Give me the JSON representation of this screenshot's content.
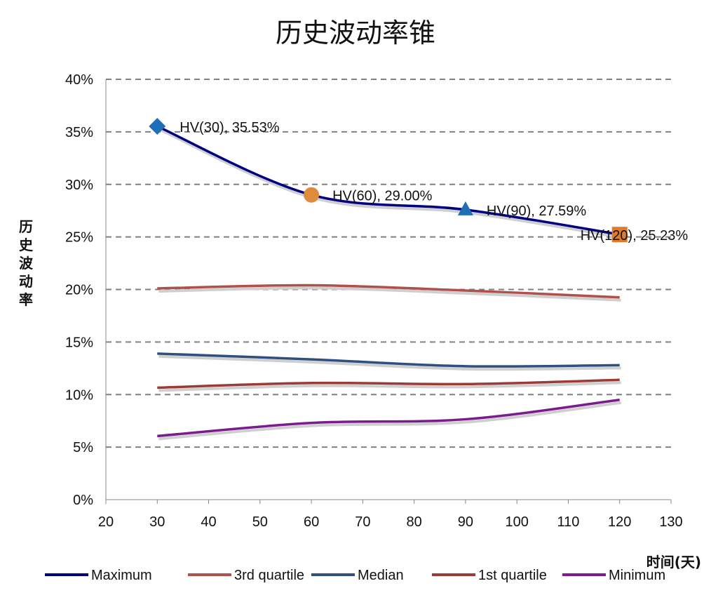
{
  "chart_data": {
    "type": "line",
    "title": "历史波动率锥",
    "ylabel": "历史波动率",
    "xlabel": "时间(天)",
    "xlim": [
      20,
      130
    ],
    "xticks": [
      20,
      30,
      40,
      50,
      60,
      70,
      80,
      90,
      100,
      110,
      120,
      130
    ],
    "ylim": [
      0,
      0.4
    ],
    "yticks": [
      0,
      0.05,
      0.1,
      0.15,
      0.2,
      0.25,
      0.3,
      0.35,
      0.4
    ],
    "ytick_labels": [
      "0%",
      "5%",
      "10%",
      "15%",
      "20%",
      "25%",
      "30%",
      "35%",
      "40%"
    ],
    "grid": "horizontal dashed",
    "legend_position": "bottom",
    "x": [
      30,
      60,
      90,
      120
    ],
    "series": [
      {
        "name": "Maximum",
        "color": "#000080",
        "values": [
          0.3553,
          0.29,
          0.2759,
          0.2523
        ]
      },
      {
        "name": "3rd quartile",
        "color": "#B0504D",
        "values": [
          0.201,
          0.204,
          0.199,
          0.1925
        ]
      },
      {
        "name": "Median",
        "color": "#2F4F7F",
        "values": [
          0.139,
          0.1335,
          0.127,
          0.128
        ]
      },
      {
        "name": "1st quartile",
        "color": "#9B3B38",
        "values": [
          0.1065,
          0.111,
          0.11,
          0.114
        ]
      },
      {
        "name": "Minimum",
        "color": "#7B1C8E",
        "values": [
          0.0605,
          0.073,
          0.0765,
          0.095
        ]
      }
    ],
    "markers": [
      {
        "x": 30,
        "y": 0.3553,
        "shape": "diamond",
        "color": "#1F6FB8",
        "label": "HV(30), 35.53%"
      },
      {
        "x": 60,
        "y": 0.29,
        "shape": "circle",
        "color": "#E08A3C",
        "label": "HV(60), 29.00%"
      },
      {
        "x": 90,
        "y": 0.2759,
        "shape": "triangle",
        "color": "#1F6FB8",
        "label": "HV(90), 27.59%"
      },
      {
        "x": 120,
        "y": 0.2523,
        "shape": "square",
        "color": "#E07B2A",
        "label": "HV(120), 25.23%"
      }
    ]
  }
}
